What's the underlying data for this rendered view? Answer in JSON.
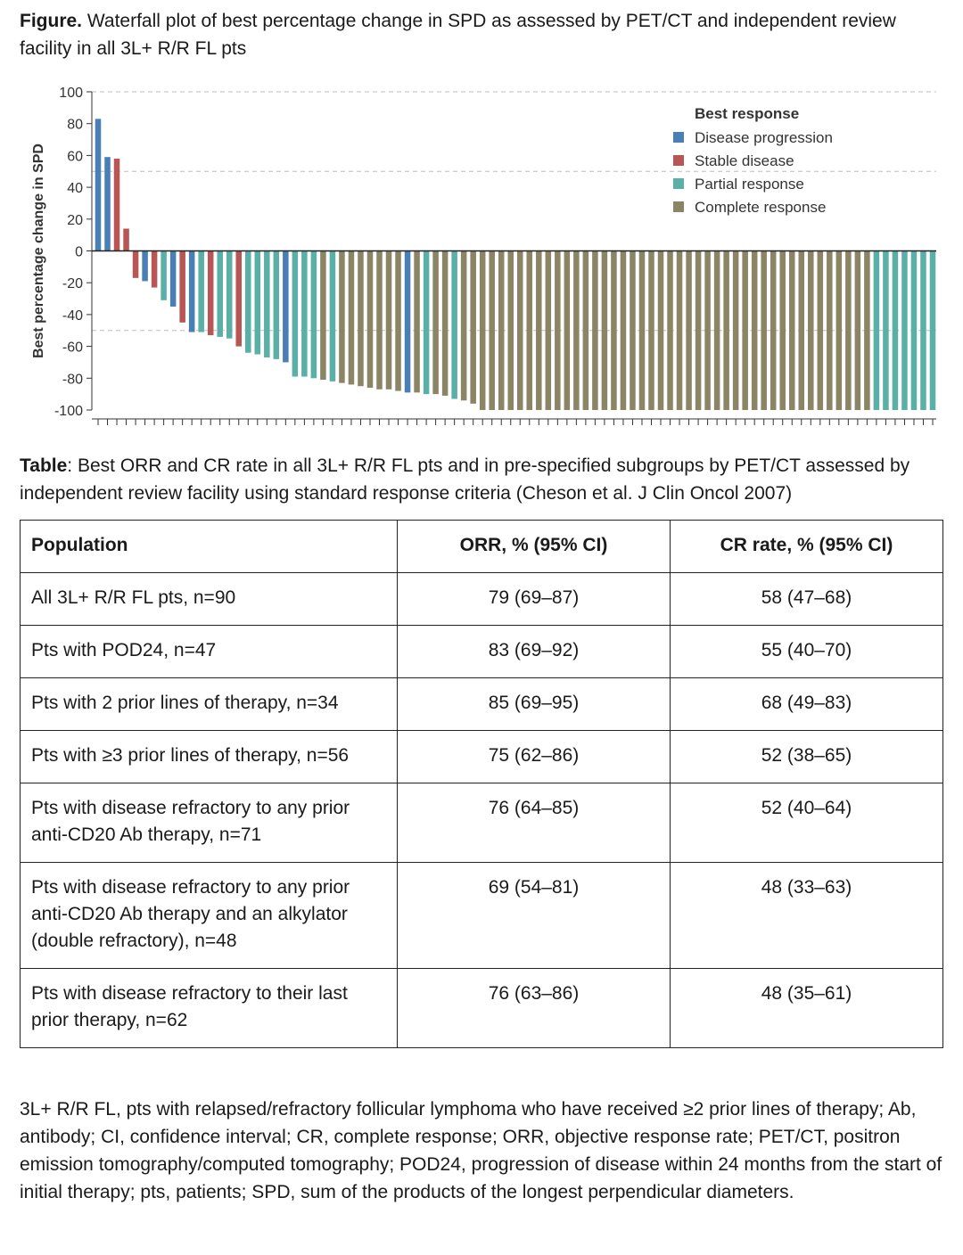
{
  "figure": {
    "label": "Figure.",
    "caption": "Waterfall plot of best percentage change in SPD as assessed by PET/CT and independent review facility in all 3L+ R/R FL pts"
  },
  "chart_data": {
    "type": "bar",
    "subtype": "waterfall",
    "ylabel": "Best percentage change in SPD",
    "xlabel": "",
    "ylim": [
      -100,
      100
    ],
    "yticks": [
      100,
      80,
      60,
      40,
      20,
      0,
      -20,
      -40,
      -60,
      -80,
      -100
    ],
    "grid": "dashed horizontal at 100, 50, -50",
    "legend": {
      "title": "Best response",
      "placement": "top-right",
      "entries": [
        {
          "key": "PD",
          "label": "Disease progression",
          "color": "#4a7fb5"
        },
        {
          "key": "SD",
          "label": "Stable disease",
          "color": "#b85555"
        },
        {
          "key": "PR",
          "label": "Partial response",
          "color": "#5aafa7"
        },
        {
          "key": "CR",
          "label": "Complete response",
          "color": "#8b8565"
        }
      ]
    },
    "bars": [
      {
        "value": 83,
        "response": "PD"
      },
      {
        "value": 59,
        "response": "PD"
      },
      {
        "value": 58,
        "response": "SD"
      },
      {
        "value": 14,
        "response": "SD"
      },
      {
        "value": -17,
        "response": "SD"
      },
      {
        "value": -19,
        "response": "PD"
      },
      {
        "value": -23,
        "response": "SD"
      },
      {
        "value": -31,
        "response": "PR"
      },
      {
        "value": -35,
        "response": "PD"
      },
      {
        "value": -45,
        "response": "SD"
      },
      {
        "value": -51,
        "response": "PD"
      },
      {
        "value": -51,
        "response": "PR"
      },
      {
        "value": -53,
        "response": "SD"
      },
      {
        "value": -54,
        "response": "PR"
      },
      {
        "value": -55,
        "response": "PR"
      },
      {
        "value": -60,
        "response": "SD"
      },
      {
        "value": -64,
        "response": "PR"
      },
      {
        "value": -65,
        "response": "PR"
      },
      {
        "value": -67,
        "response": "PR"
      },
      {
        "value": -68,
        "response": "PR"
      },
      {
        "value": -70,
        "response": "PD"
      },
      {
        "value": -79,
        "response": "PR"
      },
      {
        "value": -79,
        "response": "PR"
      },
      {
        "value": -80,
        "response": "PR"
      },
      {
        "value": -81,
        "response": "CR"
      },
      {
        "value": -82,
        "response": "PR"
      },
      {
        "value": -83,
        "response": "CR"
      },
      {
        "value": -84,
        "response": "CR"
      },
      {
        "value": -85,
        "response": "CR"
      },
      {
        "value": -86,
        "response": "CR"
      },
      {
        "value": -87,
        "response": "CR"
      },
      {
        "value": -87,
        "response": "CR"
      },
      {
        "value": -88,
        "response": "CR"
      },
      {
        "value": -89,
        "response": "PD"
      },
      {
        "value": -89,
        "response": "CR"
      },
      {
        "value": -90,
        "response": "PR"
      },
      {
        "value": -90,
        "response": "CR"
      },
      {
        "value": -91,
        "response": "CR"
      },
      {
        "value": -93,
        "response": "PR"
      },
      {
        "value": -94,
        "response": "CR"
      },
      {
        "value": -96,
        "response": "CR"
      },
      {
        "value": -100,
        "response": "CR"
      },
      {
        "value": -100,
        "response": "CR"
      },
      {
        "value": -100,
        "response": "CR"
      },
      {
        "value": -100,
        "response": "CR"
      },
      {
        "value": -100,
        "response": "CR"
      },
      {
        "value": -100,
        "response": "CR"
      },
      {
        "value": -100,
        "response": "CR"
      },
      {
        "value": -100,
        "response": "CR"
      },
      {
        "value": -100,
        "response": "CR"
      },
      {
        "value": -100,
        "response": "CR"
      },
      {
        "value": -100,
        "response": "CR"
      },
      {
        "value": -100,
        "response": "CR"
      },
      {
        "value": -100,
        "response": "CR"
      },
      {
        "value": -100,
        "response": "CR"
      },
      {
        "value": -100,
        "response": "CR"
      },
      {
        "value": -100,
        "response": "CR"
      },
      {
        "value": -100,
        "response": "CR"
      },
      {
        "value": -100,
        "response": "CR"
      },
      {
        "value": -100,
        "response": "CR"
      },
      {
        "value": -100,
        "response": "CR"
      },
      {
        "value": -100,
        "response": "CR"
      },
      {
        "value": -100,
        "response": "CR"
      },
      {
        "value": -100,
        "response": "CR"
      },
      {
        "value": -100,
        "response": "CR"
      },
      {
        "value": -100,
        "response": "CR"
      },
      {
        "value": -100,
        "response": "CR"
      },
      {
        "value": -100,
        "response": "CR"
      },
      {
        "value": -100,
        "response": "CR"
      },
      {
        "value": -100,
        "response": "CR"
      },
      {
        "value": -100,
        "response": "CR"
      },
      {
        "value": -100,
        "response": "CR"
      },
      {
        "value": -100,
        "response": "CR"
      },
      {
        "value": -100,
        "response": "CR"
      },
      {
        "value": -100,
        "response": "CR"
      },
      {
        "value": -100,
        "response": "CR"
      },
      {
        "value": -100,
        "response": "CR"
      },
      {
        "value": -100,
        "response": "CR"
      },
      {
        "value": -100,
        "response": "CR"
      },
      {
        "value": -100,
        "response": "CR"
      },
      {
        "value": -100,
        "response": "CR"
      },
      {
        "value": -100,
        "response": "CR"
      },
      {
        "value": -100,
        "response": "CR"
      },
      {
        "value": -100,
        "response": "PR"
      },
      {
        "value": -100,
        "response": "PR"
      },
      {
        "value": -100,
        "response": "PR"
      },
      {
        "value": -100,
        "response": "PR"
      },
      {
        "value": -100,
        "response": "PR"
      },
      {
        "value": -100,
        "response": "PR"
      },
      {
        "value": -100,
        "response": "PR"
      }
    ]
  },
  "table": {
    "label": "Table",
    "caption": ": Best ORR and CR rate in all 3L+ R/R FL pts and in pre-specified subgroups by PET/CT assessed by independent review facility using standard response criteria (Cheson et al. J Clin Oncol 2007)",
    "headers": [
      "Population",
      "ORR, % (95% CI)",
      "CR rate, % (95% CI)"
    ],
    "rows": [
      [
        "All 3L+ R/R FL pts, n=90",
        "79 (69–87)",
        "58 (47–68)"
      ],
      [
        "Pts with POD24, n=47",
        "83 (69–92)",
        "55 (40–70)"
      ],
      [
        "Pts with 2 prior lines of therapy, n=34",
        "85 (69–95)",
        "68 (49–83)"
      ],
      [
        "Pts with ≥3 prior lines of therapy, n=56",
        "75 (62–86)",
        "52 (38–65)"
      ],
      [
        "Pts with disease refractory to any prior anti-CD20 Ab therapy, n=71",
        "76 (64–85)",
        "52 (40–64)"
      ],
      [
        "Pts with disease refractory to any prior anti-CD20 Ab therapy and an alkylator (double refractory), n=48",
        "69 (54–81)",
        "48 (33–63)"
      ],
      [
        "Pts with disease refractory to their last prior therapy, n=62",
        "76 (63–86)",
        "48 (35–61)"
      ]
    ]
  },
  "footnote": "3L+ R/R FL, pts with relapsed/refractory follicular lymphoma who have received ≥2 prior lines of therapy; Ab, antibody; CI, confidence interval; CR, complete response; ORR, objective response rate; PET/CT, positron emission tomography/computed tomography; POD24, progression of disease within 24 months from the start of initial therapy; pts, patients; SPD, sum of the products of the longest perpendicular diameters."
}
